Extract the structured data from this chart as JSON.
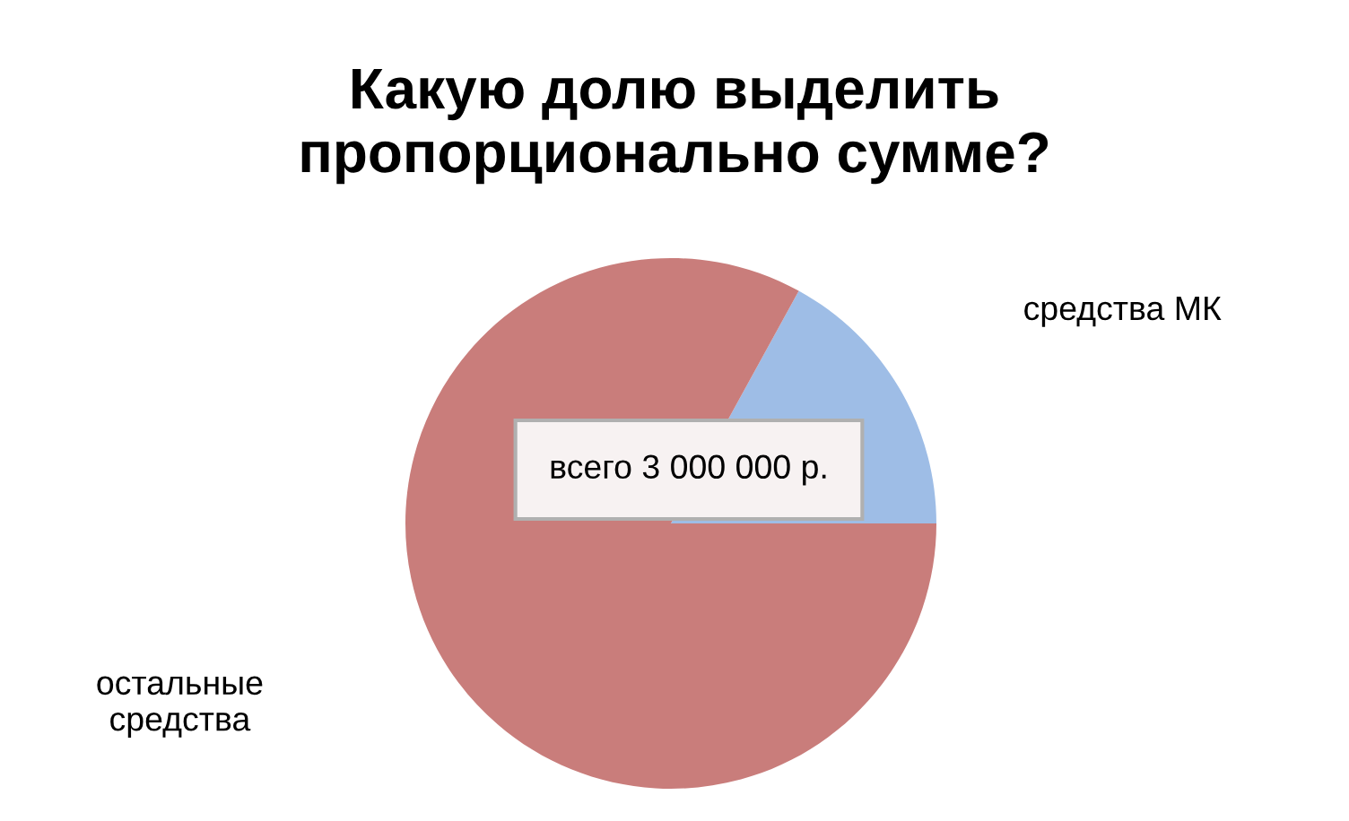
{
  "chart_data": {
    "type": "pie",
    "title": "Какую долю выделить\nпропорционально сумме?",
    "categories": [
      "средства МК",
      "остальные\nсредства"
    ],
    "values": [
      17,
      83
    ],
    "colors": [
      "#9ebde6",
      "#c97d7b"
    ],
    "annotations": [
      "всего 3 000 000 р."
    ],
    "legend": false
  }
}
